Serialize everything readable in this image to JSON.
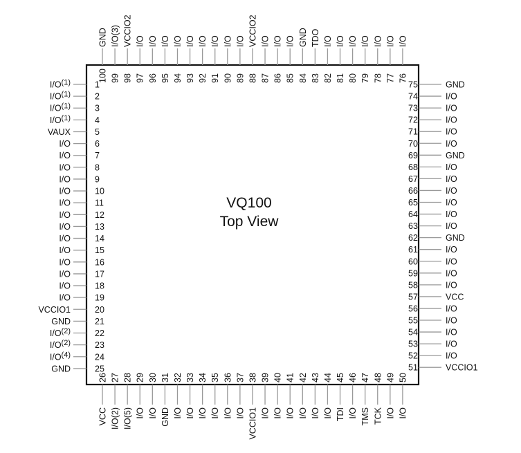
{
  "package": {
    "title": "VQ100",
    "subtitle": "Top View"
  },
  "colors": {
    "body_outline": "#111111",
    "pin_line": "#999999",
    "text": "#111111"
  },
  "left_pins": [
    {
      "num": "1",
      "name": "I/O",
      "note": "(1)"
    },
    {
      "num": "2",
      "name": "I/O",
      "note": "(1)"
    },
    {
      "num": "3",
      "name": "I/O",
      "note": "(1)"
    },
    {
      "num": "4",
      "name": "I/O",
      "note": "(1)"
    },
    {
      "num": "5",
      "name": "VAUX",
      "note": ""
    },
    {
      "num": "6",
      "name": "I/O",
      "note": ""
    },
    {
      "num": "7",
      "name": "I/O",
      "note": ""
    },
    {
      "num": "8",
      "name": "I/O",
      "note": ""
    },
    {
      "num": "9",
      "name": "I/O",
      "note": ""
    },
    {
      "num": "10",
      "name": "I/O",
      "note": ""
    },
    {
      "num": "11",
      "name": "I/O",
      "note": ""
    },
    {
      "num": "12",
      "name": "I/O",
      "note": ""
    },
    {
      "num": "13",
      "name": "I/O",
      "note": ""
    },
    {
      "num": "14",
      "name": "I/O",
      "note": ""
    },
    {
      "num": "15",
      "name": "I/O",
      "note": ""
    },
    {
      "num": "16",
      "name": "I/O",
      "note": ""
    },
    {
      "num": "17",
      "name": "I/O",
      "note": ""
    },
    {
      "num": "18",
      "name": "I/O",
      "note": ""
    },
    {
      "num": "19",
      "name": "I/O",
      "note": ""
    },
    {
      "num": "20",
      "name": "VCCIO1",
      "note": ""
    },
    {
      "num": "21",
      "name": "GND",
      "note": ""
    },
    {
      "num": "22",
      "name": "I/O",
      "note": "(2)"
    },
    {
      "num": "23",
      "name": "I/O",
      "note": "(2)"
    },
    {
      "num": "24",
      "name": "I/O",
      "note": "(4)"
    },
    {
      "num": "25",
      "name": "GND",
      "note": ""
    }
  ],
  "bottom_pins": [
    {
      "num": "26",
      "name": "VCC"
    },
    {
      "num": "27",
      "name": "I/O(2)"
    },
    {
      "num": "28",
      "name": "I/O(5)"
    },
    {
      "num": "29",
      "name": "I/O"
    },
    {
      "num": "30",
      "name": "I/O"
    },
    {
      "num": "31",
      "name": "GND"
    },
    {
      "num": "32",
      "name": "I/O"
    },
    {
      "num": "33",
      "name": "I/O"
    },
    {
      "num": "34",
      "name": "I/O"
    },
    {
      "num": "35",
      "name": "I/O"
    },
    {
      "num": "36",
      "name": "I/O"
    },
    {
      "num": "37",
      "name": "I/O"
    },
    {
      "num": "38",
      "name": "VCCIO1"
    },
    {
      "num": "39",
      "name": "I/O"
    },
    {
      "num": "40",
      "name": "I/O"
    },
    {
      "num": "41",
      "name": "I/O"
    },
    {
      "num": "42",
      "name": "I/O"
    },
    {
      "num": "43",
      "name": "I/O"
    },
    {
      "num": "44",
      "name": "I/O"
    },
    {
      "num": "45",
      "name": "TDI"
    },
    {
      "num": "46",
      "name": "I/O"
    },
    {
      "num": "47",
      "name": "TMS"
    },
    {
      "num": "48",
      "name": "TCK"
    },
    {
      "num": "49",
      "name": "I/O"
    },
    {
      "num": "50",
      "name": "I/O"
    }
  ],
  "right_pins": [
    {
      "num": "75",
      "name": "GND"
    },
    {
      "num": "74",
      "name": "I/O"
    },
    {
      "num": "73",
      "name": "I/O"
    },
    {
      "num": "72",
      "name": "I/O"
    },
    {
      "num": "71",
      "name": "I/O"
    },
    {
      "num": "70",
      "name": "I/O"
    },
    {
      "num": "69",
      "name": "GND"
    },
    {
      "num": "68",
      "name": "I/O"
    },
    {
      "num": "67",
      "name": "I/O"
    },
    {
      "num": "66",
      "name": "I/O"
    },
    {
      "num": "65",
      "name": "I/O"
    },
    {
      "num": "64",
      "name": "I/O"
    },
    {
      "num": "63",
      "name": "I/O"
    },
    {
      "num": "62",
      "name": "GND"
    },
    {
      "num": "61",
      "name": "I/O"
    },
    {
      "num": "60",
      "name": "I/O"
    },
    {
      "num": "59",
      "name": "I/O"
    },
    {
      "num": "58",
      "name": "I/O"
    },
    {
      "num": "57",
      "name": "VCC"
    },
    {
      "num": "56",
      "name": "I/O"
    },
    {
      "num": "55",
      "name": "I/O"
    },
    {
      "num": "54",
      "name": "I/O"
    },
    {
      "num": "53",
      "name": "I/O"
    },
    {
      "num": "52",
      "name": "I/O"
    },
    {
      "num": "51",
      "name": "VCCIO1"
    }
  ],
  "top_pins": [
    {
      "num": "100",
      "name": "GND"
    },
    {
      "num": "99",
      "name": "I/O(3)"
    },
    {
      "num": "98",
      "name": "VCCIO2"
    },
    {
      "num": "97",
      "name": "I/O"
    },
    {
      "num": "96",
      "name": "I/O"
    },
    {
      "num": "95",
      "name": "I/O"
    },
    {
      "num": "94",
      "name": "I/O"
    },
    {
      "num": "93",
      "name": "I/O"
    },
    {
      "num": "92",
      "name": "I/O"
    },
    {
      "num": "91",
      "name": "I/O"
    },
    {
      "num": "90",
      "name": "I/O"
    },
    {
      "num": "89",
      "name": "I/O"
    },
    {
      "num": "88",
      "name": "VCCIO2"
    },
    {
      "num": "87",
      "name": "I/O"
    },
    {
      "num": "86",
      "name": "I/O"
    },
    {
      "num": "85",
      "name": "I/O"
    },
    {
      "num": "84",
      "name": "GND"
    },
    {
      "num": "83",
      "name": "TDO"
    },
    {
      "num": "82",
      "name": "I/O"
    },
    {
      "num": "81",
      "name": "I/O"
    },
    {
      "num": "80",
      "name": "I/O"
    },
    {
      "num": "79",
      "name": "I/O"
    },
    {
      "num": "78",
      "name": "I/O"
    },
    {
      "num": "77",
      "name": "I/O"
    },
    {
      "num": "76",
      "name": "I/O"
    }
  ]
}
